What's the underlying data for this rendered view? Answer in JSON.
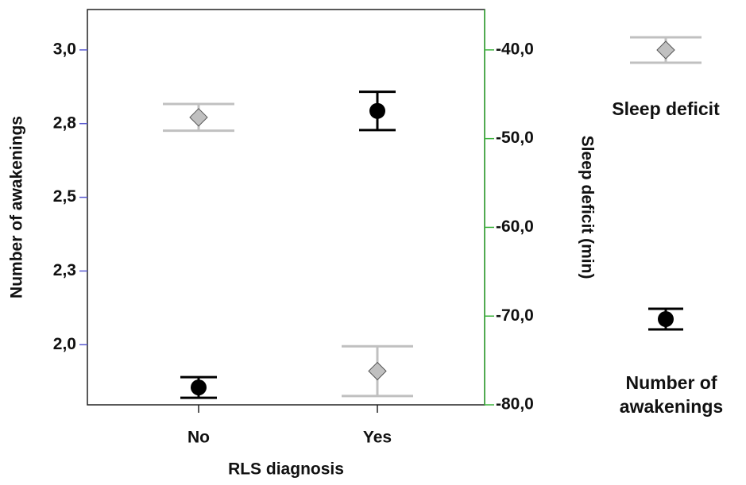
{
  "chart_data": {
    "type": "errorbar",
    "x_label": "RLS diagnosis",
    "y_label": "Number of awakenings",
    "y2_label": "Sleep deficit (min)",
    "categories": [
      "No",
      "Yes"
    ],
    "ylim": [
      1.796,
      3.137
    ],
    "yticks": [
      {
        "value": 2.0,
        "label": "2,0"
      },
      {
        "value": 2.25,
        "label": "2,3"
      },
      {
        "value": 2.5,
        "label": "2,5"
      },
      {
        "value": 2.75,
        "label": "2,8"
      },
      {
        "value": 3.0,
        "label": "3,0"
      }
    ],
    "y2lim": [
      -80,
      -35.45
    ],
    "y2ticks": [
      {
        "value": -80,
        "label": "-80,0"
      },
      {
        "value": -70,
        "label": "-70,0"
      },
      {
        "value": -60,
        "label": "-60,0"
      },
      {
        "value": -50,
        "label": "-50,0"
      },
      {
        "value": -40,
        "label": "-40,0"
      }
    ],
    "legend": "right",
    "series": [
      {
        "name": "Sleep deficit",
        "color": "#c0c0c0",
        "marker": "diamond",
        "axis": "y2",
        "values": [
          -47.6,
          -76.2
        ],
        "errors": [
          1.5,
          2.8
        ]
      },
      {
        "name": "Number of awakenings",
        "color": "#000000",
        "marker": "circle",
        "values": [
          1.855,
          2.793
        ],
        "errors": [
          0.035,
          0.065
        ]
      }
    ]
  }
}
